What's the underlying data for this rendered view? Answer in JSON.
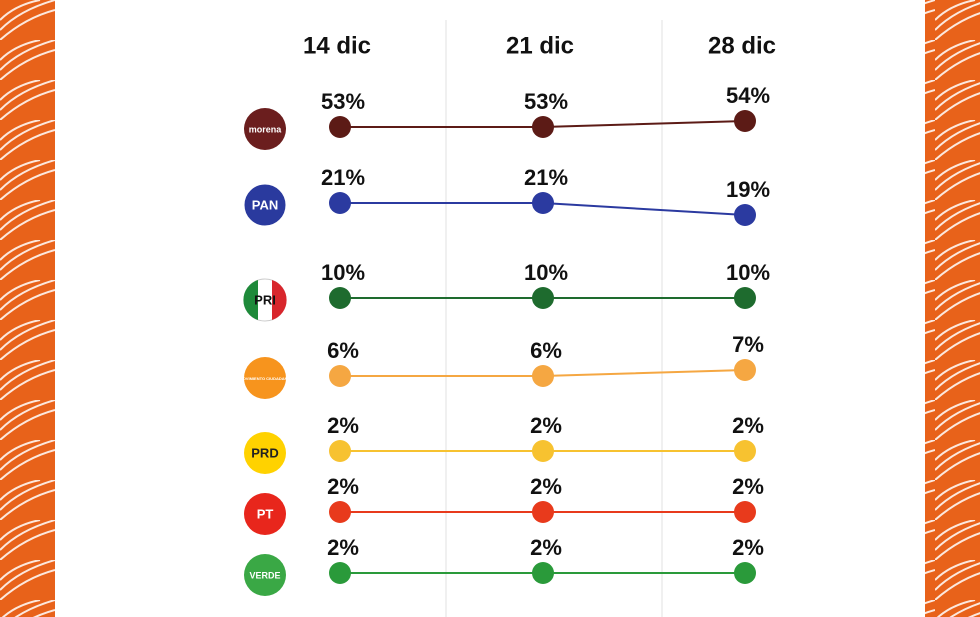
{
  "chart_data": {
    "type": "line",
    "categories": [
      "14 dic",
      "21 dic",
      "28 dic"
    ],
    "series": [
      {
        "name": "morena",
        "color": "#5c1b16",
        "logo_color": "#6b1e1e",
        "values": [
          53,
          53,
          54
        ],
        "value_labels": [
          "53%",
          "53%",
          "54%"
        ]
      },
      {
        "name": "PAN",
        "color": "#2b3aa0",
        "logo_color": "#2a3a9e",
        "values": [
          21,
          21,
          19
        ],
        "value_labels": [
          "21%",
          "21%",
          "19%"
        ]
      },
      {
        "name": "PRI",
        "color": "#1e6b2e",
        "logo_color": "#1e8a3a",
        "values": [
          10,
          10,
          10
        ],
        "value_labels": [
          "10%",
          "10%",
          "10%"
        ]
      },
      {
        "name": "MOVIMIENTO CIUDADANO",
        "color": "#f5a742",
        "logo_color": "#f7941d",
        "values": [
          6,
          6,
          7
        ],
        "value_labels": [
          "6%",
          "6%",
          "7%"
        ]
      },
      {
        "name": "PRD",
        "color": "#f7c230",
        "logo_color": "#ffd200",
        "values": [
          2,
          2,
          2
        ],
        "value_labels": [
          "2%",
          "2%",
          "2%"
        ]
      },
      {
        "name": "PT",
        "color": "#e83a1c",
        "logo_color": "#e8261c",
        "values": [
          2,
          2,
          2
        ],
        "value_labels": [
          "2%",
          "2%",
          "2%"
        ]
      },
      {
        "name": "VERDE",
        "color": "#2a9a3a",
        "logo_color": "#3aa845",
        "values": [
          2,
          2,
          2
        ],
        "value_labels": [
          "2%",
          "2%",
          "2%"
        ]
      }
    ]
  }
}
